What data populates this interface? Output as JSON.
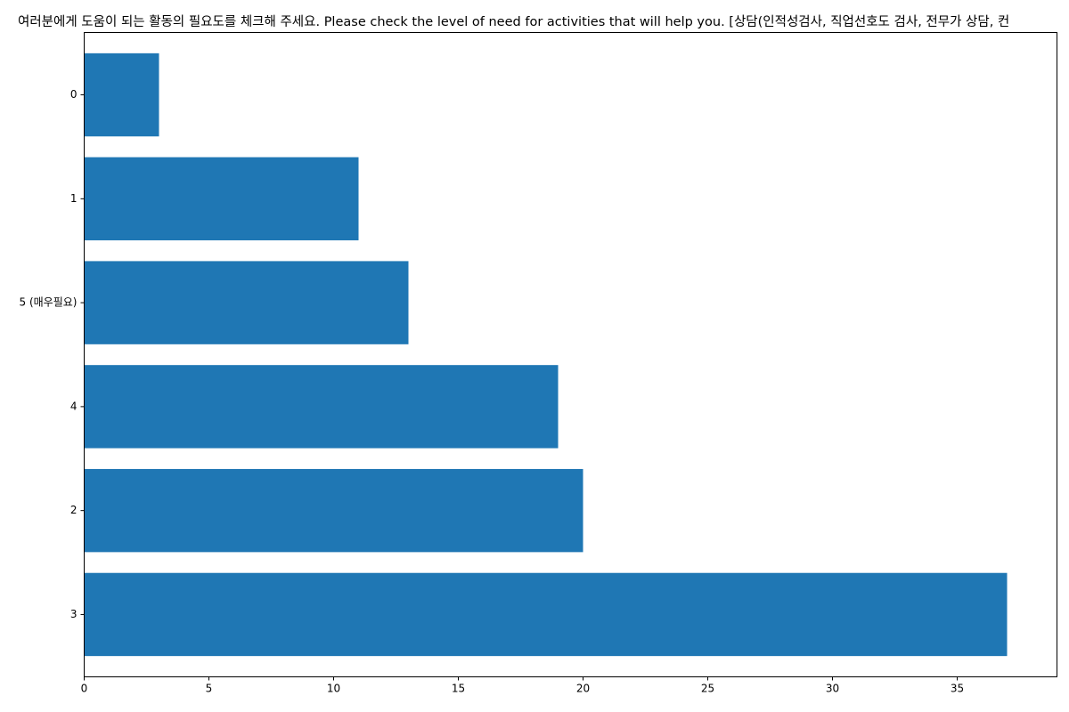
{
  "chart_data": {
    "type": "bar",
    "orientation": "horizontal",
    "title": "여러분에게 도움이 되는 활동의 필요도를 체크해 주세요. Please check the level of need for activities that will help you. [상담(인적성검사, 직업선호도 검사, 전무가 상담, 컨",
    "xlabel": "",
    "ylabel": "",
    "categories": [
      "0",
      "1",
      "5 (매우필요)",
      "4",
      "2",
      "3"
    ],
    "values": [
      3,
      11,
      13,
      19,
      20,
      37
    ],
    "xlim": [
      0,
      39
    ],
    "xticks": [
      0,
      5,
      10,
      15,
      20,
      25,
      30,
      35
    ],
    "grid": false,
    "legend": "none",
    "bar_color": "#1f77b4"
  }
}
